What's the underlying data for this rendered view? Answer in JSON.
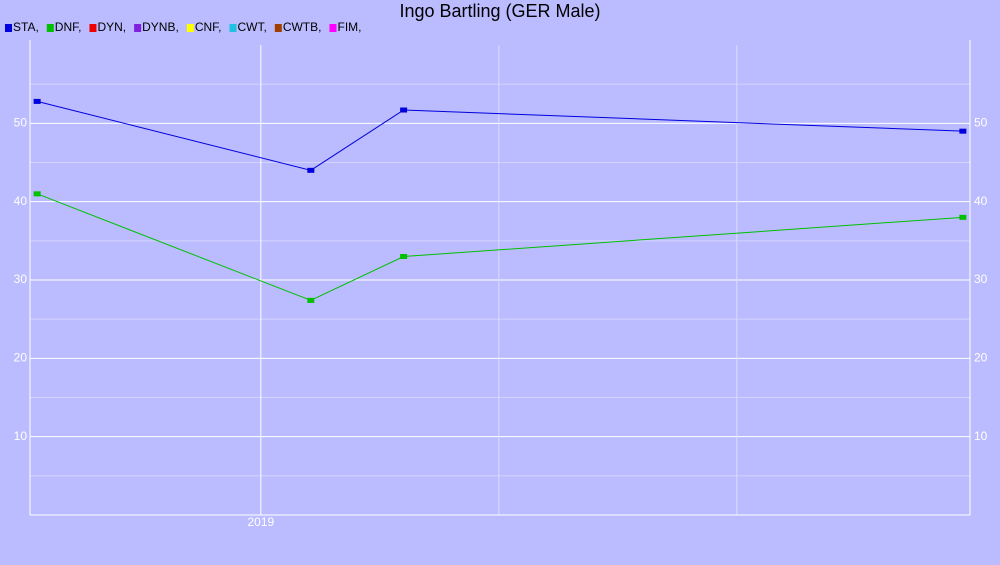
{
  "chart_data": {
    "type": "line",
    "title": "Ingo Bartling (GER Male)",
    "x": [
      2018.06,
      2019.21,
      2019.6,
      2021.95
    ],
    "series": [
      {
        "name": "STA,",
        "color": "#0000dd",
        "values": [
          52.8,
          44,
          51.7,
          49
        ]
      },
      {
        "name": "DNF,",
        "color": "#00c000",
        "values": [
          41,
          27.4,
          33,
          38
        ]
      },
      {
        "name": "DYN,",
        "color": "#ee0000",
        "values": [
          null,
          null,
          null,
          null
        ]
      },
      {
        "name": "DYNB,",
        "color": "#8020e0",
        "values": [
          null,
          null,
          null,
          null
        ]
      },
      {
        "name": "CNF,",
        "color": "#ffff00",
        "values": [
          null,
          null,
          null,
          null
        ]
      },
      {
        "name": "CWT,",
        "color": "#20c0e0",
        "values": [
          null,
          null,
          null,
          null
        ]
      },
      {
        "name": "CWTB,",
        "color": "#a04000",
        "values": [
          null,
          null,
          null,
          null
        ]
      },
      {
        "name": "FIM,",
        "color": "#ff00ff",
        "values": [
          null,
          null,
          null,
          null
        ]
      }
    ],
    "xlim": [
      2018.03,
      2021.98
    ],
    "xticks": [
      2019,
      {
        "value": 2020,
        "label": null
      },
      {
        "value": 2021,
        "label": null
      }
    ],
    "ylim": [
      0,
      60
    ],
    "yticks": [
      10,
      20,
      30,
      40,
      50
    ],
    "yminorticks": [
      5,
      15,
      25,
      35,
      45,
      55
    ],
    "grid": true,
    "legend": "top-left",
    "background": "#bbbbff"
  }
}
